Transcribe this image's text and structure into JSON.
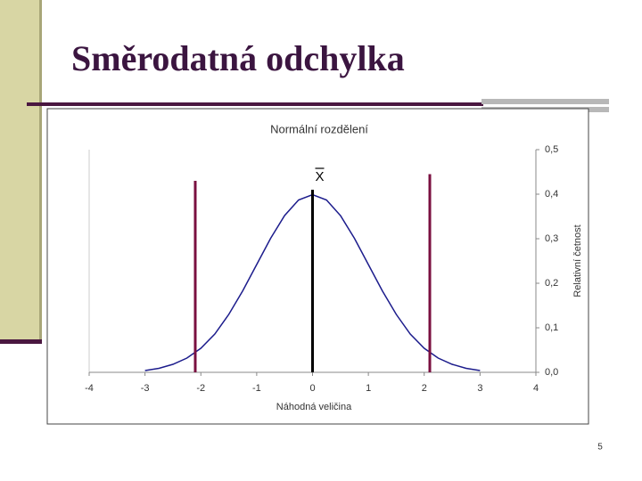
{
  "slide": {
    "title": "Směrodatná odchylka",
    "page_number": "5"
  },
  "chart_data": {
    "type": "line",
    "title": "Normální rozdělení",
    "x_label": "Náhodná veličina",
    "y_label": "Relativní četnost",
    "x": [
      -3,
      -2.75,
      -2.5,
      -2.25,
      -2,
      -1.75,
      -1.5,
      -1.25,
      -1,
      -0.75,
      -0.5,
      -0.25,
      0,
      0.25,
      0.5,
      0.75,
      1,
      1.25,
      1.5,
      1.75,
      2,
      2.25,
      2.5,
      2.75,
      3
    ],
    "series": [
      {
        "color": "#1c1c8c",
        "values": [
          0.004,
          0.009,
          0.018,
          0.032,
          0.054,
          0.086,
          0.13,
          0.183,
          0.242,
          0.301,
          0.352,
          0.387,
          0.399,
          0.387,
          0.352,
          0.301,
          0.242,
          0.183,
          0.13,
          0.086,
          0.054,
          0.032,
          0.018,
          0.009,
          0.004
        ]
      }
    ],
    "markers": [
      {
        "x": 0,
        "top": 0.41,
        "color": "#000000",
        "label": "X"
      },
      {
        "x": -2.1,
        "top": 0.43,
        "color": "#7a1040"
      },
      {
        "x": 2.1,
        "top": 0.445,
        "color": "#7a1040"
      }
    ],
    "xlim": [
      -4,
      4
    ],
    "xticks": [
      -4,
      -3,
      -2,
      -1,
      0,
      1,
      2,
      3,
      4
    ],
    "ylim": [
      0,
      0.5
    ],
    "y_axis_side": "right",
    "yticks": [
      {
        "value": 0,
        "label": "0,0"
      },
      {
        "value": 0.1,
        "label": "0,1"
      },
      {
        "value": 0.2,
        "label": "0,2"
      },
      {
        "value": 0.3,
        "label": "0,3"
      },
      {
        "value": 0.4,
        "label": "0,4"
      },
      {
        "value": 0.5,
        "label": "0,5"
      }
    ]
  }
}
